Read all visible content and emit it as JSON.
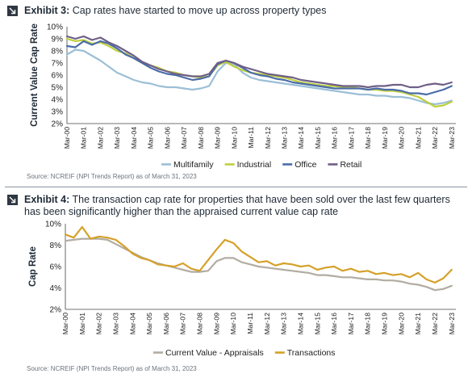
{
  "exhibit3": {
    "label": "Exhibit 3:",
    "title": "Cap rates have started to move up across property types",
    "source": "Source: NCREIF (NPI Trends Report) as of March 31, 2023"
  },
  "exhibit4": {
    "label": "Exhibit 4:",
    "title_line1": "The transaction cap rate for properties that have been sold over the last few quarters",
    "title_line2": "has been significantly higher than the appraised current value cap rate",
    "source": "Source: NCREIF (NPI Trends Report) as of March 31, 2023"
  },
  "colors": {
    "multifamily": "#9bbfd6",
    "industrial": "#bfcf3c",
    "office": "#4a6ca8",
    "retail": "#6e5f86",
    "appraisal": "#b2aca2",
    "transactions": "#d4a12a",
    "arrow_box": "#2f3742"
  },
  "icons": {
    "exhibit_marker": "arrow-down-right-icon"
  },
  "chart_data": [
    {
      "type": "line",
      "ylabel": "Current Value Cap Rate",
      "ylim": [
        2,
        10
      ],
      "yticks": [
        "2%",
        "3%",
        "4%",
        "5%",
        "6%",
        "7%",
        "8%",
        "9%",
        "10%"
      ],
      "xlim": [
        2000.0,
        2023.25
      ],
      "xticks": [
        "Mar-00",
        "Mar-01",
        "Mar-02",
        "Mar-03",
        "Mar-04",
        "Mar-05",
        "Mar-06",
        "Mar-07",
        "Mar-08",
        "Mar-09",
        "Mar-10",
        "Mar-11",
        "Mar-12",
        "Mar-13",
        "Mar-14",
        "Mar-15",
        "Mar-16",
        "Mar-17",
        "Mar-18",
        "Mar-19",
        "Mar-20",
        "Mar-21",
        "Mar-22",
        "Mar-23"
      ],
      "grid": false,
      "legend_position": "bottom",
      "series": [
        {
          "name": "Multifamily",
          "color_key": "multifamily",
          "x": [
            2000,
            2000.5,
            2001,
            2001.5,
            2002,
            2002.5,
            2003,
            2003.5,
            2004,
            2004.5,
            2005,
            2005.5,
            2006,
            2006.5,
            2007,
            2007.5,
            2008,
            2008.5,
            2009,
            2009.5,
            2010,
            2010.5,
            2011,
            2011.5,
            2012,
            2012.5,
            2013,
            2013.5,
            2014,
            2014.5,
            2015,
            2015.5,
            2016,
            2016.5,
            2017,
            2017.5,
            2018,
            2018.5,
            2019,
            2019.5,
            2020,
            2020.5,
            2021,
            2021.5,
            2022,
            2022.5,
            2023
          ],
          "y": [
            7.7,
            8.1,
            8.0,
            7.6,
            7.2,
            6.7,
            6.2,
            5.9,
            5.6,
            5.4,
            5.3,
            5.1,
            5.0,
            5.0,
            4.9,
            4.8,
            4.9,
            5.1,
            6.3,
            7.0,
            6.9,
            6.2,
            5.8,
            5.6,
            5.5,
            5.4,
            5.3,
            5.2,
            5.1,
            5.0,
            4.9,
            4.8,
            4.7,
            4.6,
            4.5,
            4.4,
            4.4,
            4.3,
            4.3,
            4.2,
            4.2,
            4.1,
            3.9,
            3.7,
            3.6,
            3.7,
            3.9
          ]
        },
        {
          "name": "Industrial",
          "color_key": "industrial",
          "x": [
            2000,
            2000.5,
            2001,
            2001.5,
            2002,
            2002.5,
            2003,
            2003.5,
            2004,
            2004.5,
            2005,
            2005.5,
            2006,
            2006.5,
            2007,
            2007.5,
            2008,
            2008.5,
            2009,
            2009.5,
            2010,
            2010.5,
            2011,
            2011.5,
            2012,
            2012.5,
            2013,
            2013.5,
            2014,
            2014.5,
            2015,
            2015.5,
            2016,
            2016.5,
            2017,
            2017.5,
            2018,
            2018.5,
            2019,
            2019.5,
            2020,
            2020.5,
            2021,
            2021.5,
            2022,
            2022.5,
            2023
          ],
          "y": [
            9.0,
            8.8,
            8.9,
            8.6,
            8.7,
            8.4,
            8.0,
            7.8,
            7.4,
            7.0,
            6.8,
            6.6,
            6.3,
            6.2,
            6.0,
            5.9,
            5.8,
            5.9,
            6.8,
            7.1,
            6.7,
            6.4,
            6.2,
            6.1,
            6.0,
            5.9,
            5.8,
            5.6,
            5.4,
            5.3,
            5.2,
            5.1,
            5.1,
            5.0,
            5.0,
            4.9,
            4.8,
            4.8,
            4.7,
            4.7,
            4.6,
            4.4,
            4.2,
            3.8,
            3.4,
            3.5,
            3.8
          ]
        },
        {
          "name": "Office",
          "color_key": "office",
          "x": [
            2000,
            2000.5,
            2001,
            2001.5,
            2002,
            2002.5,
            2003,
            2003.5,
            2004,
            2004.5,
            2005,
            2005.5,
            2006,
            2006.5,
            2007,
            2007.5,
            2008,
            2008.5,
            2009,
            2009.5,
            2010,
            2010.5,
            2011,
            2011.5,
            2012,
            2012.5,
            2013,
            2013.5,
            2014,
            2014.5,
            2015,
            2015.5,
            2016,
            2016.5,
            2017,
            2017.5,
            2018,
            2018.5,
            2019,
            2019.5,
            2020,
            2020.5,
            2021,
            2021.5,
            2022,
            2022.5,
            2023
          ],
          "y": [
            8.4,
            8.3,
            8.8,
            8.5,
            8.8,
            8.6,
            8.2,
            7.7,
            7.4,
            7.0,
            6.6,
            6.3,
            6.1,
            6.0,
            5.8,
            5.6,
            5.7,
            5.9,
            6.9,
            7.2,
            7.0,
            6.6,
            6.2,
            6.0,
            5.9,
            5.7,
            5.6,
            5.4,
            5.3,
            5.2,
            5.1,
            5.0,
            4.9,
            4.9,
            4.9,
            4.9,
            4.8,
            4.9,
            4.8,
            4.8,
            4.7,
            4.5,
            4.5,
            4.4,
            4.6,
            4.8,
            5.1
          ]
        },
        {
          "name": "Retail",
          "color_key": "retail",
          "x": [
            2000,
            2000.5,
            2001,
            2001.5,
            2002,
            2002.5,
            2003,
            2003.5,
            2004,
            2004.5,
            2005,
            2005.5,
            2006,
            2006.5,
            2007,
            2007.5,
            2008,
            2008.5,
            2009,
            2009.5,
            2010,
            2010.5,
            2011,
            2011.5,
            2012,
            2012.5,
            2013,
            2013.5,
            2014,
            2014.5,
            2015,
            2015.5,
            2016,
            2016.5,
            2017,
            2017.5,
            2018,
            2018.5,
            2019,
            2019.5,
            2020,
            2020.5,
            2021,
            2021.5,
            2022,
            2022.5,
            2023
          ],
          "y": [
            9.2,
            9.0,
            9.2,
            8.9,
            9.1,
            8.7,
            8.4,
            8.0,
            7.6,
            7.1,
            6.8,
            6.5,
            6.3,
            6.1,
            6.0,
            5.9,
            5.9,
            6.1,
            7.0,
            7.2,
            7.0,
            6.7,
            6.5,
            6.3,
            6.1,
            6.0,
            5.9,
            5.8,
            5.6,
            5.5,
            5.4,
            5.3,
            5.2,
            5.1,
            5.1,
            5.1,
            5.0,
            5.1,
            5.1,
            5.2,
            5.2,
            5.0,
            5.0,
            5.2,
            5.3,
            5.2,
            5.4
          ]
        }
      ]
    },
    {
      "type": "line",
      "ylabel": "Cap Rate",
      "ylim": [
        2,
        10
      ],
      "yticks": [
        "2%",
        "4%",
        "6%",
        "8%",
        "10%"
      ],
      "xlim": [
        2000.0,
        2023.25
      ],
      "xticks": [
        "Mar-00",
        "Mar-01",
        "Mar-02",
        "Mar-03",
        "Mar-04",
        "Mar-05",
        "Mar-06",
        "Mar-07",
        "Mar-08",
        "Mar-09",
        "Mar-10",
        "Mar-11",
        "Mar-12",
        "Mar-13",
        "Mar-14",
        "Mar-15",
        "Mar-16",
        "Mar-17",
        "Mar-18",
        "Mar-19",
        "Mar-20",
        "Mar-21",
        "Mar-22",
        "Mar-23"
      ],
      "grid": false,
      "legend_position": "bottom",
      "series": [
        {
          "name": "Current Value - Appraisals",
          "color_key": "appraisal",
          "x": [
            2000,
            2000.5,
            2001,
            2001.5,
            2002,
            2002.5,
            2003,
            2003.5,
            2004,
            2004.5,
            2005,
            2005.5,
            2006,
            2006.5,
            2007,
            2007.5,
            2008,
            2008.5,
            2009,
            2009.5,
            2010,
            2010.5,
            2011,
            2011.5,
            2012,
            2012.5,
            2013,
            2013.5,
            2014,
            2014.5,
            2015,
            2015.5,
            2016,
            2016.5,
            2017,
            2017.5,
            2018,
            2018.5,
            2019,
            2019.5,
            2020,
            2020.5,
            2021,
            2021.5,
            2022,
            2022.5,
            2023
          ],
          "y": [
            8.4,
            8.5,
            8.6,
            8.6,
            8.6,
            8.5,
            8.1,
            7.7,
            7.3,
            6.9,
            6.6,
            6.3,
            6.1,
            5.9,
            5.7,
            5.5,
            5.5,
            5.6,
            6.5,
            6.8,
            6.8,
            6.4,
            6.2,
            6.0,
            5.9,
            5.8,
            5.7,
            5.6,
            5.5,
            5.4,
            5.2,
            5.2,
            5.1,
            5.0,
            5.0,
            4.9,
            4.8,
            4.8,
            4.7,
            4.7,
            4.6,
            4.4,
            4.3,
            4.1,
            3.8,
            3.9,
            4.2
          ]
        },
        {
          "name": "Transactions",
          "color_key": "transactions",
          "x": [
            2000,
            2000.5,
            2001,
            2001.5,
            2002,
            2002.5,
            2003,
            2003.5,
            2004,
            2004.5,
            2005,
            2005.5,
            2006,
            2006.5,
            2007,
            2007.5,
            2008,
            2008.5,
            2009,
            2009.5,
            2010,
            2010.5,
            2011,
            2011.5,
            2012,
            2012.5,
            2013,
            2013.5,
            2014,
            2014.5,
            2015,
            2015.5,
            2016,
            2016.5,
            2017,
            2017.5,
            2018,
            2018.5,
            2019,
            2019.5,
            2020,
            2020.5,
            2021,
            2021.5,
            2022,
            2022.5,
            2023
          ],
          "y": [
            9.0,
            8.7,
            9.7,
            8.6,
            8.8,
            8.7,
            8.5,
            7.9,
            7.2,
            6.8,
            6.6,
            6.2,
            6.1,
            6.0,
            6.3,
            5.8,
            5.6,
            6.6,
            7.6,
            8.5,
            8.2,
            7.4,
            6.9,
            6.4,
            6.5,
            6.1,
            6.3,
            6.2,
            6.0,
            6.1,
            5.7,
            5.9,
            6.0,
            5.6,
            5.8,
            5.5,
            5.6,
            5.3,
            5.4,
            5.2,
            5.3,
            5.0,
            5.4,
            4.8,
            4.5,
            4.9,
            5.7
          ]
        }
      ]
    }
  ]
}
